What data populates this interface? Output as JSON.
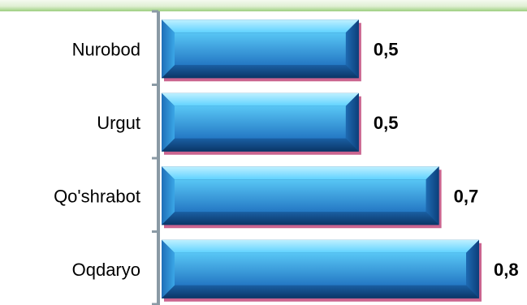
{
  "chart_data": {
    "type": "bar",
    "orientation": "horizontal",
    "categories": [
      "Nurobod",
      "Urgut",
      "Qo'shrabot",
      "Oqdaryo"
    ],
    "values": [
      0.5,
      0.5,
      0.7,
      0.8
    ],
    "value_labels": [
      "0,5",
      "0,5",
      "0,7",
      "0,8"
    ],
    "xlim": [
      0,
      0.8
    ],
    "title": "",
    "xlabel": "",
    "ylabel": "",
    "grid": false,
    "legend": "none",
    "colors": {
      "bar_light": "#5fd2ff",
      "bar_mid": "#2a8fd8",
      "bar_dark": "#0c3f7a",
      "bar_shadow": "#b8306a",
      "axis": "#8a9aa5",
      "top_strip": "#9ccf7f"
    }
  }
}
